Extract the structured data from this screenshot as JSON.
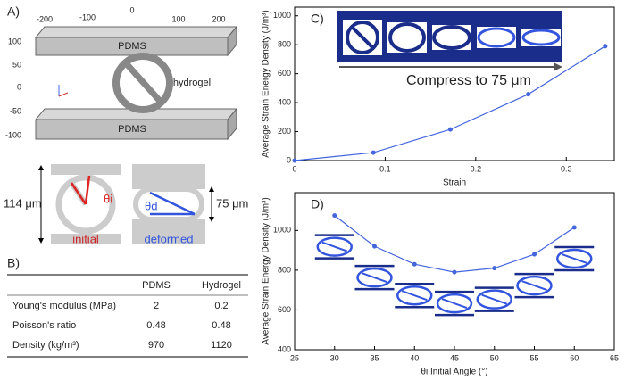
{
  "diagram": {
    "panel": "A)",
    "top_ticks": [
      -200,
      -100,
      0,
      100,
      200
    ],
    "side_ticks": [
      100,
      50,
      0,
      -50,
      -100
    ],
    "slab_top": "PDMS",
    "slab_bottom": "PDMS",
    "ring": "hydrogel",
    "initial_height": "114 μm",
    "deformed_height": "75 μm",
    "initial_angle": "θi",
    "deformed_angle": "θd",
    "initial": "initial",
    "deformed": "deformed"
  },
  "table": {
    "panel": "B)",
    "columns": [
      "PDMS",
      "Hydrogel"
    ],
    "rows": [
      {
        "label": "Young's modulus (MPa)",
        "values": [
          2,
          0.2
        ]
      },
      {
        "label": "Poisson's ratio",
        "values": [
          0.48,
          0.48
        ]
      },
      {
        "label": "Density (kg/m³)",
        "values": [
          970,
          1120
        ]
      }
    ]
  },
  "chart_data": [
    {
      "type": "line",
      "panel": "C)",
      "annotation": "Compress to 75 μm",
      "xlabel": "Strain",
      "ylabel": "Average Strain Energy Density (J/m³)",
      "x": [
        0,
        0.087,
        0.172,
        0.258,
        0.343
      ],
      "series": [
        {
          "color": "#4466dd",
          "values": [
            0,
            55,
            215,
            458,
            790
          ]
        }
      ],
      "xlim": [
        0,
        0.353
      ],
      "ylim": [
        0,
        1060
      ],
      "xticks": [
        0,
        0.1,
        0.2,
        0.3
      ],
      "yticks": [
        0,
        200,
        400,
        600,
        800,
        1000
      ]
    },
    {
      "type": "line",
      "panel": "D)",
      "xlabel": "θi Initial Angle (°)",
      "ylabel": "Average Strain Energy Density (J/m³)",
      "x": [
        30,
        35,
        40,
        45,
        50,
        55,
        60
      ],
      "series": [
        {
          "color": "#4466dd",
          "values": [
            1075,
            920,
            830,
            790,
            810,
            880,
            1015
          ]
        }
      ],
      "xlim": [
        25,
        65
      ],
      "ylim": [
        400,
        1190
      ],
      "xticks": [
        25,
        30,
        35,
        40,
        45,
        50,
        55,
        60,
        65
      ],
      "yticks": [
        400,
        600,
        800,
        1000
      ]
    }
  ]
}
